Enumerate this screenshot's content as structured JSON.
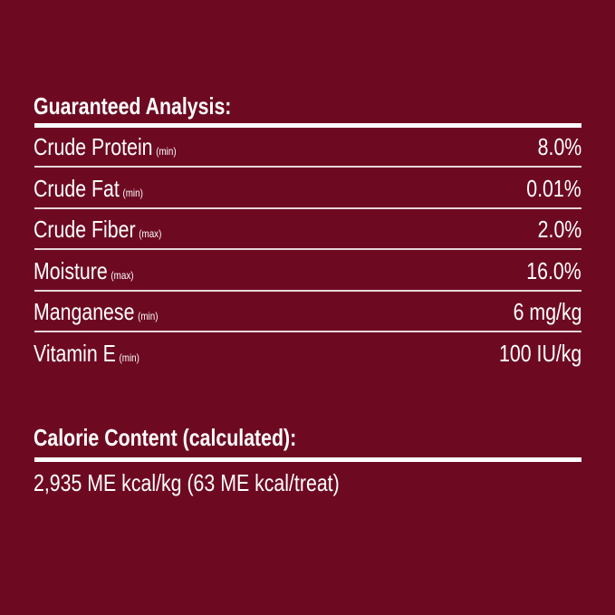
{
  "guaranteed_analysis": {
    "title": "Guaranteed Analysis:",
    "rows": [
      {
        "name": "Crude Protein",
        "qualifier": "(min)",
        "value": "8.0%"
      },
      {
        "name": "Crude Fat",
        "qualifier": "(min)",
        "value": "0.01%"
      },
      {
        "name": "Crude Fiber",
        "qualifier": "(max)",
        "value": "2.0%"
      },
      {
        "name": "Moisture",
        "qualifier": "(max)",
        "value": "16.0%"
      },
      {
        "name": "Manganese",
        "qualifier": "(min)",
        "value": "6 mg/kg"
      },
      {
        "name": "Vitamin E",
        "qualifier": "(min)",
        "value": "100 IU/kg"
      }
    ]
  },
  "calorie_content": {
    "title": "Calorie Content (calculated):",
    "value": "2,935 ME kcal/kg (63 ME kcal/treat)"
  },
  "colors": {
    "background": "#6d0a22",
    "text": "#ffffff"
  }
}
